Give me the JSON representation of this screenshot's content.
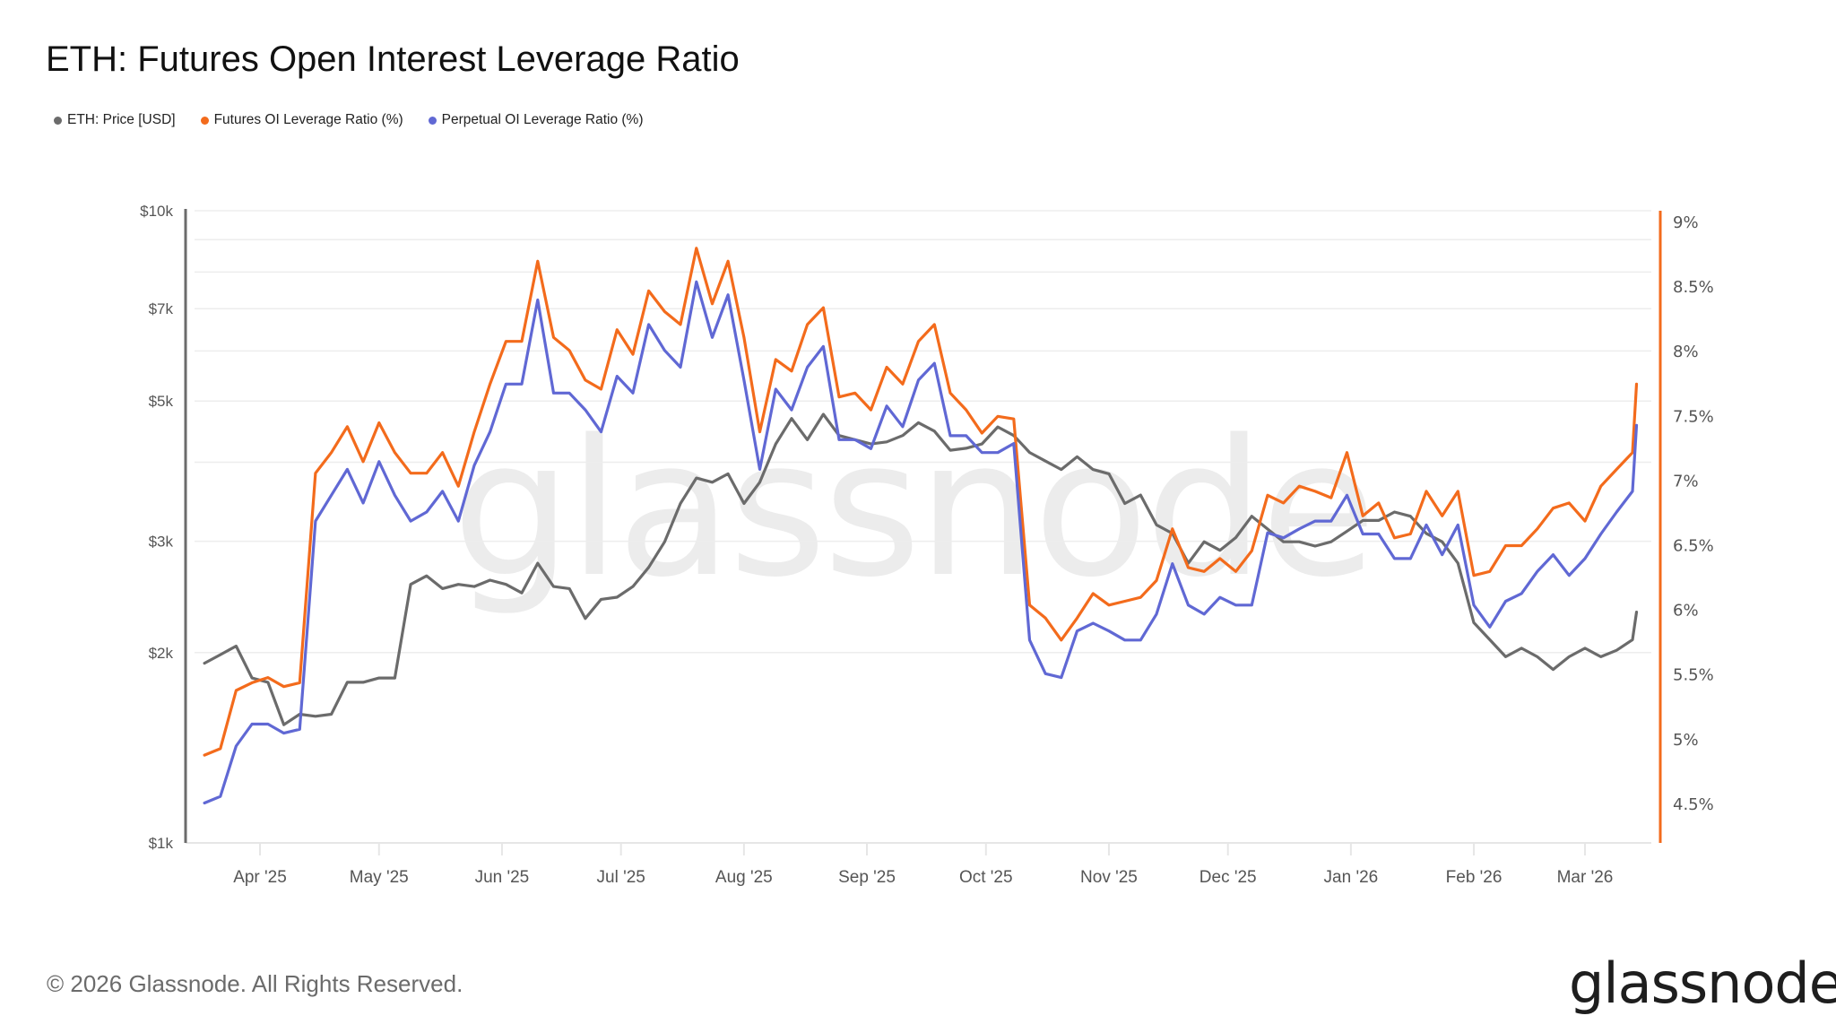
{
  "title": "ETH: Futures Open Interest Leverage Ratio",
  "footer": "© 2026 Glassnode. All Rights Reserved.",
  "logo_text": "glassnode",
  "watermark_text": "glassnode",
  "legend": [
    {
      "label": "ETH: Price [USD]",
      "color": "#6b6b6b"
    },
    {
      "label": "Futures OI Leverage Ratio (%)",
      "color": "#f36b1c"
    },
    {
      "label": "Perpetual OI Leverage Ratio (%)",
      "color": "#6068d4"
    }
  ],
  "chart_data": {
    "type": "line",
    "title": "ETH: Futures Open Interest Leverage Ratio",
    "x_tick_labels": [
      "Apr '25",
      "May '25",
      "Jun '25",
      "Jul '25",
      "Aug '25",
      "Sep '25",
      "Oct '25",
      "Nov '25",
      "Dec '25",
      "Jan '26",
      "Feb '26",
      "Mar '26"
    ],
    "x_tick_dates": [
      "2025-04-01",
      "2025-05-01",
      "2025-06-01",
      "2025-07-01",
      "2025-08-01",
      "2025-09-01",
      "2025-10-01",
      "2025-11-01",
      "2025-12-01",
      "2026-01-01",
      "2026-02-01",
      "2026-03-01"
    ],
    "y_left": {
      "scale": "log",
      "range": [
        1000,
        10000
      ],
      "tick_values": [
        10000,
        7000,
        5000,
        3000,
        2000,
        1000
      ],
      "tick_labels": [
        "$10k",
        "$7k",
        "$5k",
        "$3k",
        "$2k",
        "$1k"
      ],
      "grid_values": [
        1000,
        2000,
        3000,
        4000,
        5000,
        6000,
        7000,
        8000,
        9000,
        10000
      ]
    },
    "y_right": {
      "scale": "linear",
      "range": [
        4.5,
        9
      ],
      "tick_values": [
        9,
        8.5,
        8,
        7.5,
        7,
        6.5,
        6,
        5.5,
        5,
        4.5
      ],
      "tick_labels": [
        "9%",
        "8.5%",
        "8%",
        "7.5%",
        "7%",
        "6.5%",
        "6%",
        "5.5%",
        "5%",
        "4.5%"
      ],
      "color": "#f36b1c"
    },
    "grid": true,
    "legend_position": "top-left",
    "x": [
      "2025-03-18",
      "2025-03-22",
      "2025-03-26",
      "2025-03-30",
      "2025-04-03",
      "2025-04-07",
      "2025-04-11",
      "2025-04-15",
      "2025-04-19",
      "2025-04-23",
      "2025-04-27",
      "2025-05-01",
      "2025-05-05",
      "2025-05-09",
      "2025-05-13",
      "2025-05-17",
      "2025-05-21",
      "2025-05-25",
      "2025-05-29",
      "2025-06-02",
      "2025-06-06",
      "2025-06-10",
      "2025-06-14",
      "2025-06-18",
      "2025-06-22",
      "2025-06-26",
      "2025-06-30",
      "2025-07-04",
      "2025-07-08",
      "2025-07-12",
      "2025-07-16",
      "2025-07-20",
      "2025-07-24",
      "2025-07-28",
      "2025-08-01",
      "2025-08-05",
      "2025-08-09",
      "2025-08-13",
      "2025-08-17",
      "2025-08-21",
      "2025-08-25",
      "2025-08-29",
      "2025-09-02",
      "2025-09-06",
      "2025-09-10",
      "2025-09-14",
      "2025-09-18",
      "2025-09-22",
      "2025-09-26",
      "2025-09-30",
      "2025-10-04",
      "2025-10-08",
      "2025-10-12",
      "2025-10-16",
      "2025-10-20",
      "2025-10-24",
      "2025-10-28",
      "2025-11-01",
      "2025-11-05",
      "2025-11-09",
      "2025-11-13",
      "2025-11-17",
      "2025-11-21",
      "2025-11-25",
      "2025-11-29",
      "2025-12-03",
      "2025-12-07",
      "2025-12-11",
      "2025-12-15",
      "2025-12-19",
      "2025-12-23",
      "2025-12-27",
      "2025-12-31",
      "2026-01-04",
      "2026-01-08",
      "2026-01-12",
      "2026-01-16",
      "2026-01-20",
      "2026-01-24",
      "2026-01-28",
      "2026-02-01",
      "2026-02-05",
      "2026-02-09",
      "2026-02-13",
      "2026-02-17",
      "2026-02-21",
      "2026-02-25",
      "2026-03-01",
      "2026-03-05",
      "2026-03-09",
      "2026-03-13",
      "2026-03-14"
    ],
    "series": [
      {
        "name": "ETH: Price [USD]",
        "axis": "left",
        "color": "#6b6b6b",
        "values": [
          1924,
          1985,
          2048,
          1823,
          1795,
          1538,
          1598,
          1586,
          1598,
          1795,
          1795,
          1823,
          1823,
          2564,
          2645,
          2525,
          2564,
          2544,
          2604,
          2564,
          2486,
          2770,
          2544,
          2525,
          2265,
          2428,
          2447,
          2544,
          2728,
          2994,
          3442,
          3777,
          3719,
          3836,
          3442,
          3719,
          4276,
          4692,
          4342,
          4765,
          4410,
          4342,
          4276,
          4309,
          4410,
          4620,
          4480,
          4179,
          4210,
          4276,
          4550,
          4410,
          4145,
          4018,
          3896,
          4081,
          3896,
          3836,
          3442,
          3550,
          3185,
          3087,
          2770,
          2994,
          2903,
          3041,
          3287,
          3137,
          2994,
          2994,
          2948,
          2994,
          3112,
          3236,
          3236,
          3337,
          3287,
          3087,
          2994,
          2770,
          2230,
          2096,
          1970,
          2032,
          1970,
          1881,
          1970,
          2032,
          1970,
          2017,
          2096,
          2318
        ]
      },
      {
        "name": "Futures OI Leverage Ratio (%)",
        "axis": "right",
        "color": "#f36b1c",
        "values": [
          4.88,
          4.93,
          5.38,
          5.44,
          5.48,
          5.41,
          5.44,
          7.06,
          7.22,
          7.42,
          7.15,
          7.45,
          7.22,
          7.06,
          7.06,
          7.22,
          6.96,
          7.38,
          7.75,
          8.08,
          8.08,
          8.7,
          8.11,
          8.01,
          7.78,
          7.71,
          8.17,
          7.98,
          8.47,
          8.31,
          8.21,
          8.8,
          8.37,
          8.7,
          8.11,
          7.38,
          7.94,
          7.85,
          8.21,
          8.34,
          7.65,
          7.68,
          7.55,
          7.88,
          7.75,
          8.08,
          8.21,
          7.68,
          7.55,
          7.37,
          7.5,
          7.48,
          6.04,
          5.94,
          5.77,
          5.94,
          6.13,
          6.04,
          6.07,
          6.1,
          6.23,
          6.63,
          6.33,
          6.3,
          6.4,
          6.3,
          6.46,
          6.89,
          6.83,
          6.96,
          6.92,
          6.87,
          7.22,
          6.73,
          6.83,
          6.56,
          6.59,
          6.92,
          6.73,
          6.92,
          6.27,
          6.3,
          6.5,
          6.5,
          6.63,
          6.79,
          6.83,
          6.69,
          6.96,
          7.09,
          7.22,
          7.75
        ]
      },
      {
        "name": "Perpetual OI Leverage Ratio (%)",
        "axis": "right",
        "color": "#6068d4",
        "values": [
          4.51,
          4.56,
          4.95,
          5.12,
          5.12,
          5.05,
          5.08,
          6.69,
          6.89,
          7.09,
          6.83,
          7.15,
          6.89,
          6.69,
          6.76,
          6.92,
          6.69,
          7.12,
          7.38,
          7.75,
          7.75,
          8.4,
          7.68,
          7.68,
          7.55,
          7.38,
          7.81,
          7.68,
          8.21,
          8.01,
          7.88,
          8.54,
          8.11,
          8.44,
          7.78,
          7.09,
          7.71,
          7.55,
          7.88,
          8.04,
          7.32,
          7.32,
          7.25,
          7.58,
          7.42,
          7.78,
          7.91,
          7.35,
          7.35,
          7.22,
          7.22,
          7.29,
          5.77,
          5.51,
          5.48,
          5.84,
          5.9,
          5.84,
          5.77,
          5.77,
          5.97,
          6.36,
          6.04,
          5.97,
          6.1,
          6.04,
          6.04,
          6.6,
          6.56,
          6.63,
          6.69,
          6.69,
          6.89,
          6.59,
          6.59,
          6.4,
          6.4,
          6.66,
          6.43,
          6.66,
          6.04,
          5.87,
          6.07,
          6.13,
          6.3,
          6.43,
          6.27,
          6.4,
          6.59,
          6.76,
          6.92,
          7.43
        ]
      }
    ]
  }
}
